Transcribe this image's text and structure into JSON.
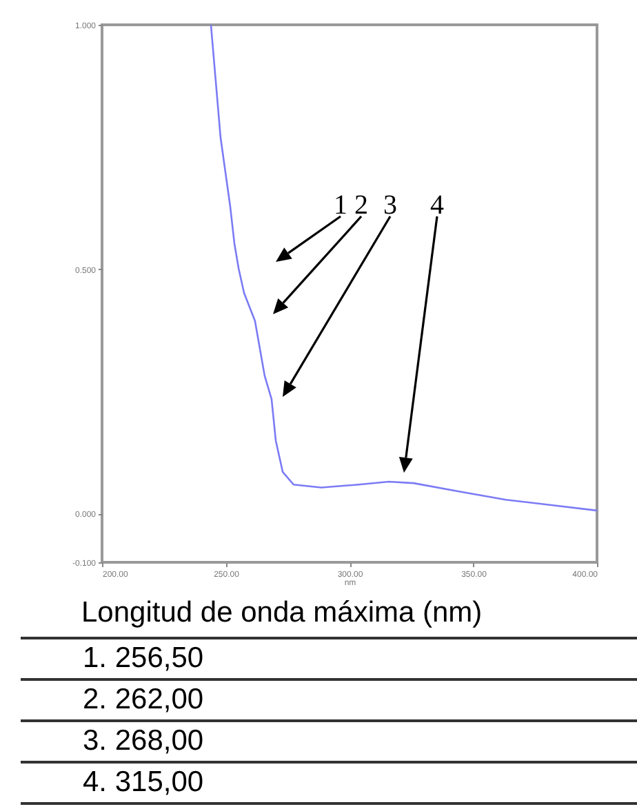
{
  "chart_data": {
    "type": "line",
    "xlabel": "nm",
    "x": [
      244.0,
      247.9,
      251.8,
      253.5,
      255.2,
      257.4,
      261.8,
      265.7,
      268.5,
      270.2,
      273.0,
      277.4,
      288.6,
      303.6,
      315.9,
      325.9,
      344.3,
      363.2,
      381.6,
      400.0
    ],
    "series": [
      {
        "color": "#7b7bf5",
        "values": [
          1.0,
          0.769,
          0.628,
          0.552,
          0.501,
          0.451,
          0.394,
          0.282,
          0.234,
          0.149,
          0.085,
          0.059,
          0.053,
          0.059,
          0.065,
          0.062,
          0.045,
          0.028,
          0.017,
          0.006
        ]
      }
    ],
    "xlim": [
      200,
      400
    ],
    "xticks": [
      {
        "value": 200,
        "label": "200.00"
      },
      {
        "value": 250,
        "label": "250.00"
      },
      {
        "value": 300,
        "label": "300.00"
      },
      {
        "value": 350,
        "label": "350.00"
      },
      {
        "value": 400,
        "label": "400.00"
      }
    ],
    "ylim": [
      -0.1,
      1.0
    ],
    "yticks": [
      {
        "value": -0.1,
        "label": "-0.100"
      },
      {
        "value": 0,
        "label": "0.000"
      },
      {
        "value": 0.5,
        "label": "0.500"
      },
      {
        "value": 1.0,
        "label": "1.000"
      }
    ],
    "grid": false,
    "marker": "none",
    "line_style": "solid",
    "annotations": [
      "1",
      "2",
      "3",
      "4",
      "Longitud de onda máxima (nm)",
      "1.  256,50",
      "2.  262,00",
      "3.  268,00",
      "4.  315,00"
    ]
  }
}
